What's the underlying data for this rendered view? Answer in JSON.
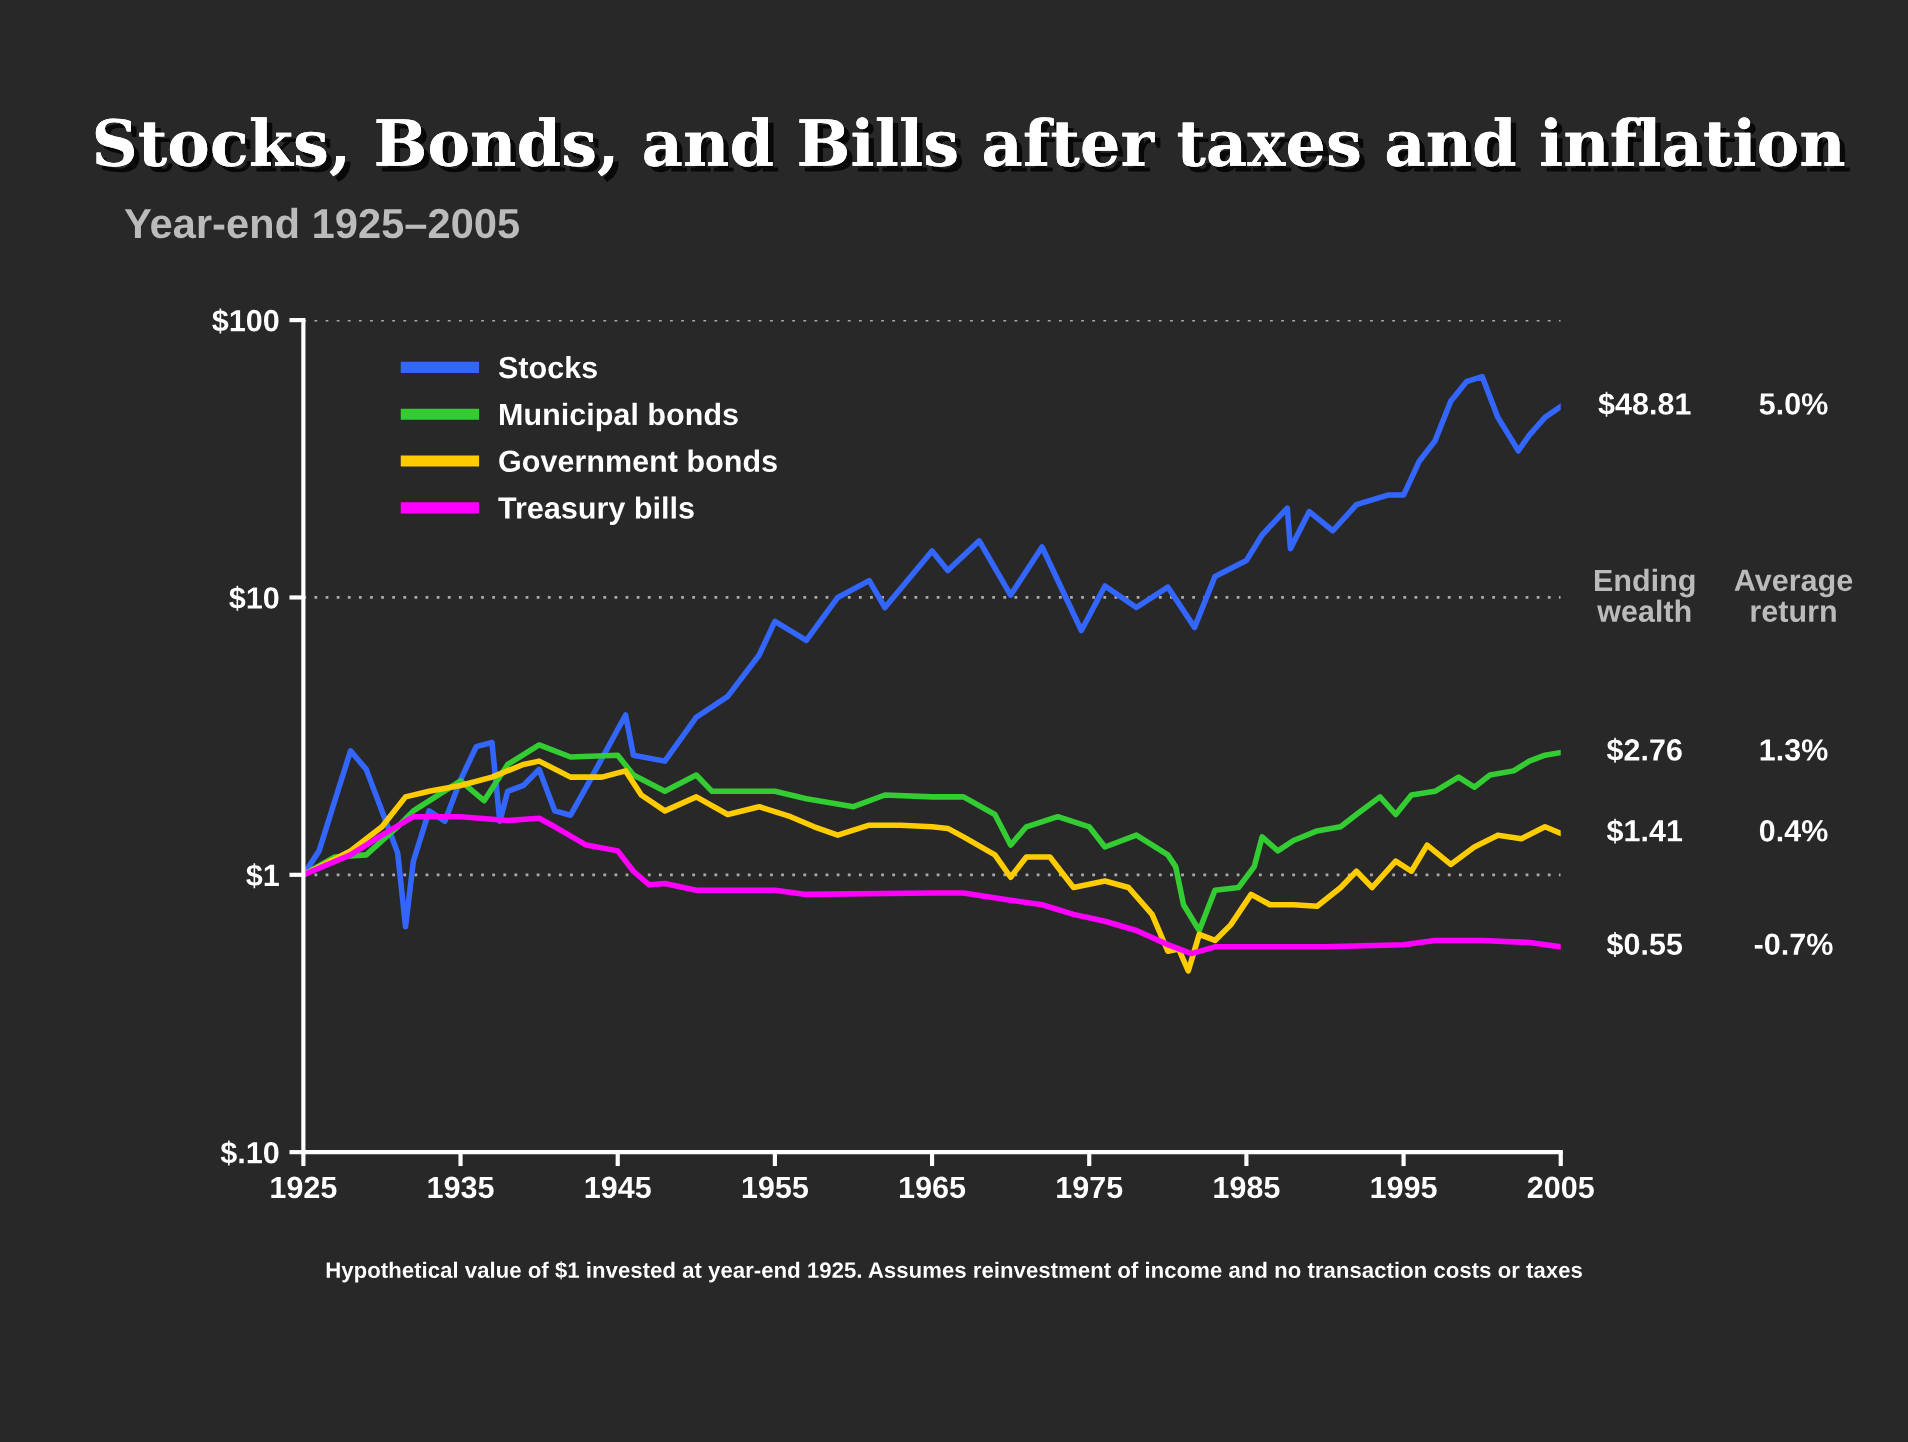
{
  "chart_data": {
    "type": "line",
    "title": "Stocks, Bonds, and Bills after taxes and inflation",
    "subtitle": "Year-end 1925–2005",
    "log": "y",
    "grid": "y",
    "legend": "top left",
    "line_style": "solid",
    "marker": "none",
    "xlim": [
      1925,
      2005
    ],
    "xticks": [
      1925,
      1935,
      1945,
      1955,
      1965,
      1975,
      1985,
      1995,
      2005
    ],
    "ylim": [
      0.1,
      100
    ],
    "yticks": [
      {
        "value": 0.1,
        "label": "$.10"
      },
      {
        "value": 1,
        "label": "$1"
      },
      {
        "value": 10,
        "label": "$10"
      },
      {
        "value": 100,
        "label": "$100"
      }
    ],
    "series": [
      {
        "name": "Stocks",
        "color": "#3366ff",
        "x": [
          1925,
          1926,
          1927,
          1928,
          1929,
          1930,
          1931,
          1931.5,
          1932,
          1933,
          1934,
          1935,
          1936,
          1937,
          1937.5,
          1938,
          1939,
          1940,
          1941,
          1942,
          1943,
          1945.5,
          1946,
          1948,
          1950,
          1952,
          1954,
          1955,
          1957,
          1959,
          1961,
          1962,
          1965,
          1966,
          1968,
          1970,
          1972,
          1974.5,
          1976,
          1978,
          1980,
          1981.7,
          1983,
          1985,
          1986,
          1987.6,
          1987.8,
          1989,
          1990.5,
          1992,
          1994,
          1995,
          1996,
          1997,
          1998,
          1999,
          2000,
          2001,
          2002.3,
          2003,
          2004,
          2005
        ],
        "values": [
          1.0,
          1.22,
          1.85,
          2.8,
          2.4,
          1.7,
          1.2,
          0.65,
          1.12,
          1.7,
          1.56,
          2.2,
          2.9,
          3.0,
          1.56,
          2.0,
          2.1,
          2.4,
          1.7,
          1.64,
          2.07,
          3.77,
          2.7,
          2.57,
          3.7,
          4.4,
          6.2,
          8.2,
          7.0,
          10,
          11.5,
          9.2,
          14.7,
          12.5,
          16,
          10.2,
          15.2,
          7.6,
          11,
          9.2,
          10.9,
          7.8,
          11.9,
          13.6,
          16.8,
          21,
          15,
          20.4,
          17.4,
          21.6,
          23.4,
          23.4,
          31,
          36.7,
          51,
          60,
          62.6,
          44.6,
          33.8,
          38.5,
          44.6,
          48.81
        ],
        "value_labels": [
          null,
          null,
          null,
          null,
          null,
          null,
          null,
          null,
          null,
          null,
          null,
          null,
          null,
          null,
          null,
          null,
          null,
          null,
          null,
          null,
          null,
          null,
          null,
          null,
          null,
          null,
          null,
          null,
          null,
          null,
          null,
          null,
          null,
          null,
          null,
          null,
          null,
          null,
          null,
          null,
          null,
          null,
          null,
          null,
          null,
          null,
          null,
          null,
          null,
          null,
          null,
          null,
          null,
          null,
          null,
          null,
          null,
          null,
          null,
          null,
          null,
          "$48.81"
        ]
      },
      {
        "name": "Municipal bonds",
        "color": "#33cc33",
        "x": [
          1925,
          1927,
          1929,
          1931,
          1932,
          1935,
          1936.5,
          1938,
          1940,
          1942,
          1945,
          1946,
          1948,
          1950,
          1951,
          1955,
          1957,
          1960,
          1962,
          1965,
          1967,
          1969,
          1970,
          1971,
          1973,
          1975,
          1976,
          1978,
          1980,
          1980.5,
          1981,
          1982,
          1983,
          1984.5,
          1985.5,
          1986,
          1987,
          1988,
          1989.5,
          1991,
          1992,
          1993.5,
          1994.5,
          1995.5,
          1997,
          1998.5,
          1999.5,
          2000.5,
          2002,
          2003,
          2004,
          2005
        ],
        "values": [
          1.0,
          1.16,
          1.18,
          1.49,
          1.7,
          2.18,
          1.85,
          2.5,
          2.94,
          2.66,
          2.7,
          2.29,
          2.0,
          2.29,
          2.0,
          2.0,
          1.88,
          1.76,
          1.94,
          1.91,
          1.91,
          1.65,
          1.28,
          1.49,
          1.62,
          1.49,
          1.26,
          1.39,
          1.18,
          1.07,
          0.78,
          0.63,
          0.88,
          0.9,
          1.07,
          1.37,
          1.22,
          1.33,
          1.44,
          1.49,
          1.65,
          1.91,
          1.65,
          1.94,
          2.0,
          2.25,
          2.07,
          2.29,
          2.37,
          2.57,
          2.7,
          2.76
        ],
        "value_labels": [
          null,
          null,
          null,
          null,
          null,
          null,
          null,
          null,
          null,
          null,
          null,
          null,
          null,
          null,
          null,
          null,
          null,
          null,
          null,
          null,
          null,
          null,
          null,
          null,
          null,
          null,
          null,
          null,
          null,
          null,
          null,
          null,
          null,
          null,
          null,
          null,
          null,
          null,
          null,
          null,
          null,
          null,
          null,
          null,
          null,
          null,
          null,
          null,
          null,
          null,
          null,
          "$2.76"
        ]
      },
      {
        "name": "Government bonds",
        "color": "#ffcc00",
        "x": [
          1925,
          1928,
          1930,
          1931.5,
          1933,
          1935,
          1937,
          1939,
          1940,
          1942,
          1944,
          1945.5,
          1946.5,
          1948,
          1950,
          1952,
          1954,
          1956,
          1957.5,
          1959,
          1961,
          1963,
          1965,
          1966,
          1967,
          1969,
          1970,
          1971,
          1972.5,
          1974,
          1976,
          1977.5,
          1979,
          1980,
          1980.7,
          1981.3,
          1982,
          1983,
          1984,
          1985.3,
          1986.5,
          1988,
          1989.5,
          1991,
          1992,
          1993,
          1994.5,
          1995.5,
          1996.5,
          1998,
          1999.5,
          2001,
          2002.5,
          2004,
          2005
        ],
        "values": [
          1.0,
          1.22,
          1.49,
          1.91,
          2.0,
          2.1,
          2.25,
          2.5,
          2.57,
          2.25,
          2.25,
          2.37,
          1.94,
          1.7,
          1.91,
          1.65,
          1.76,
          1.62,
          1.49,
          1.39,
          1.51,
          1.51,
          1.49,
          1.47,
          1.37,
          1.18,
          0.98,
          1.16,
          1.16,
          0.9,
          0.95,
          0.9,
          0.72,
          0.53,
          0.54,
          0.45,
          0.61,
          0.58,
          0.66,
          0.85,
          0.78,
          0.78,
          0.77,
          0.9,
          1.03,
          0.9,
          1.12,
          1.03,
          1.28,
          1.09,
          1.26,
          1.39,
          1.35,
          1.49,
          1.41
        ],
        "value_labels": [
          null,
          null,
          null,
          null,
          null,
          null,
          null,
          null,
          null,
          null,
          null,
          null,
          null,
          null,
          null,
          null,
          null,
          null,
          null,
          null,
          null,
          null,
          null,
          null,
          null,
          null,
          null,
          null,
          null,
          null,
          null,
          null,
          null,
          null,
          null,
          null,
          null,
          null,
          null,
          null,
          null,
          null,
          null,
          null,
          null,
          null,
          null,
          null,
          null,
          null,
          null,
          null,
          null,
          null,
          "$1.41"
        ]
      },
      {
        "name": "Treasury bills",
        "color": "#ff00ff",
        "x": [
          1925,
          1928,
          1930,
          1932,
          1935,
          1938,
          1940,
          1941,
          1943,
          1945,
          1946,
          1947,
          1948,
          1950,
          1955,
          1957,
          1965,
          1967,
          1970,
          1972,
          1974,
          1976,
          1978,
          1980,
          1981.5,
          1983,
          1985,
          1990,
          1995,
          1997,
          2000,
          2003,
          2005
        ],
        "values": [
          1.0,
          1.18,
          1.39,
          1.62,
          1.62,
          1.57,
          1.6,
          1.49,
          1.28,
          1.22,
          1.03,
          0.92,
          0.93,
          0.88,
          0.88,
          0.85,
          0.86,
          0.86,
          0.81,
          0.78,
          0.72,
          0.68,
          0.63,
          0.56,
          0.52,
          0.55,
          0.55,
          0.55,
          0.56,
          0.58,
          0.58,
          0.57,
          0.55
        ],
        "value_labels": [
          null,
          null,
          null,
          null,
          null,
          null,
          null,
          null,
          null,
          null,
          null,
          null,
          null,
          null,
          null,
          null,
          null,
          null,
          null,
          null,
          null,
          null,
          null,
          null,
          null,
          null,
          null,
          null,
          null,
          null,
          null,
          null,
          "$0.55"
        ]
      }
    ],
    "annotations": [
      "Ending\nwealth",
      "Average\nreturn",
      "Hypothetical value of $1 invested at year-end 1925. Assumes reinvestment of income and no transaction costs or taxes",
      "5.0%",
      "1.3%",
      "0.4%",
      "-0.7%"
    ]
  }
}
